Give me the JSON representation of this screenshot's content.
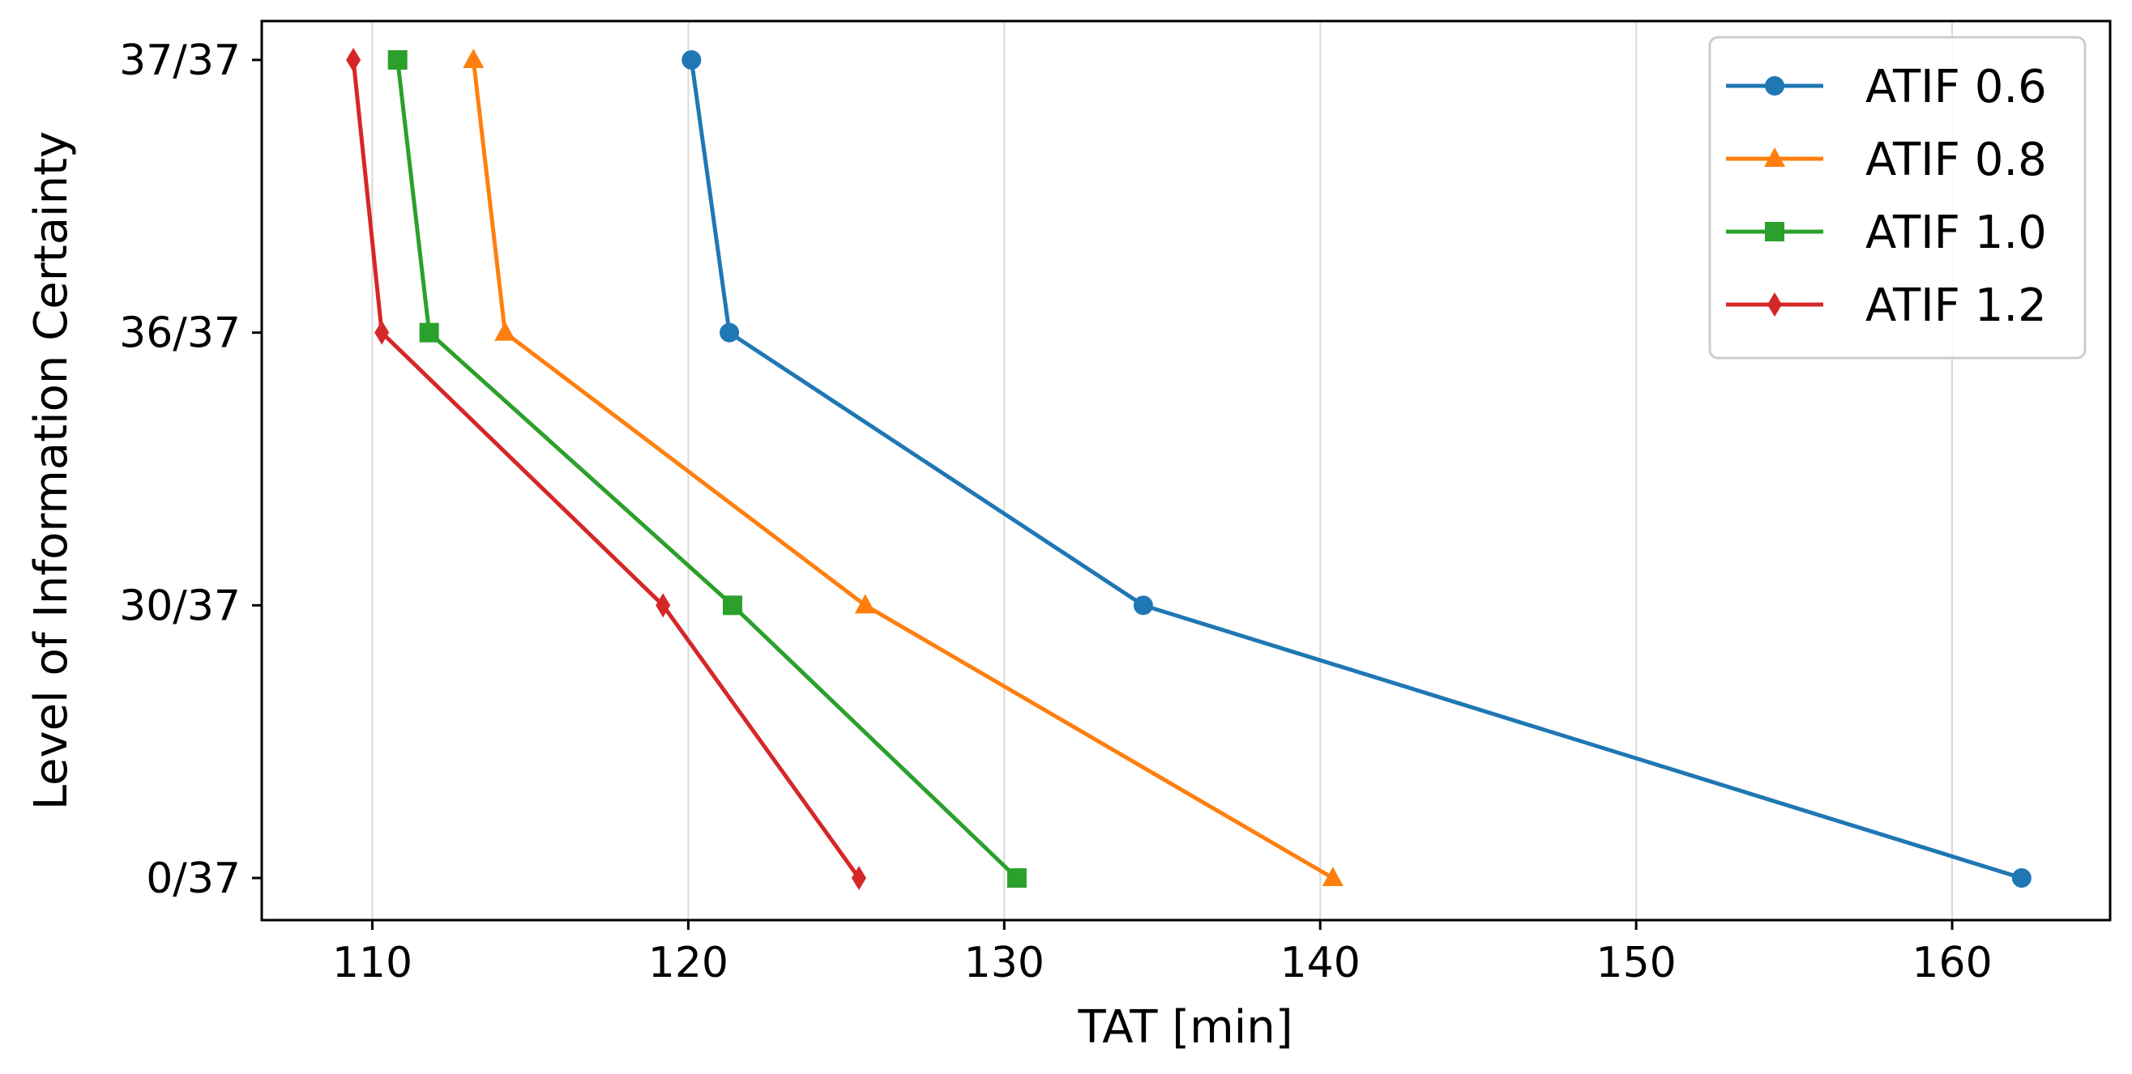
{
  "chart_data": {
    "type": "line",
    "title": "",
    "xlabel": "TAT [min]",
    "ylabel": "Level of Information Certainty",
    "categories": [
      "0/37",
      "30/37",
      "36/37",
      "37/37"
    ],
    "xlim": [
      106.5,
      165.0
    ],
    "xticks": [
      110,
      120,
      130,
      140,
      150,
      160
    ],
    "grid": "vertical",
    "legend_position": "top-right",
    "series": [
      {
        "name": "ATIF 0.6",
        "color": "#1f77b4",
        "marker": "circle",
        "values": [
          162.2,
          134.4,
          121.3,
          120.1
        ]
      },
      {
        "name": "ATIF 0.8",
        "color": "#ff7f0e",
        "marker": "triangle",
        "values": [
          140.4,
          125.6,
          114.2,
          113.2
        ]
      },
      {
        "name": "ATIF 1.0",
        "color": "#2ca02c",
        "marker": "square",
        "values": [
          130.4,
          121.4,
          111.8,
          110.8
        ]
      },
      {
        "name": "ATIF 1.2",
        "color": "#d62728",
        "marker": "diamond",
        "values": [
          125.4,
          119.2,
          110.3,
          109.4
        ]
      }
    ]
  }
}
